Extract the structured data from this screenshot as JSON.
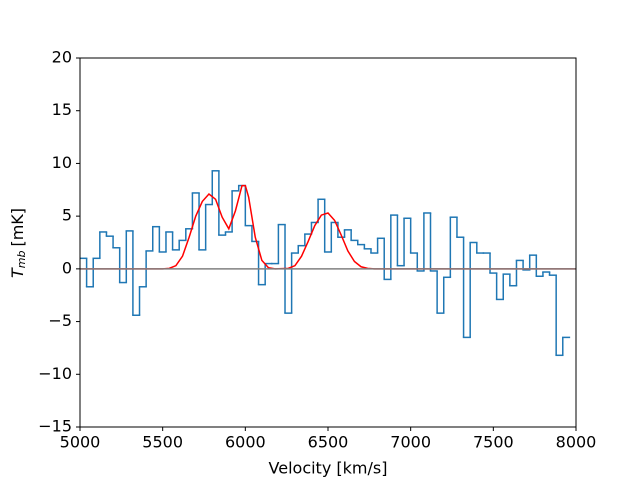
{
  "chart_data": {
    "type": "step",
    "xlabel": "Velocity [km/s]",
    "ylabel": {
      "symbol": "T",
      "subscript": "mb",
      "unit": "[mK]"
    },
    "xlim": [
      5000,
      8000
    ],
    "ylim": [
      -15,
      20
    ],
    "xticks": [
      5000,
      5500,
      6000,
      6500,
      7000,
      7500,
      8000
    ],
    "yticks": [
      {
        "value": -15,
        "label": "−15"
      },
      {
        "value": -10,
        "label": "−10"
      },
      {
        "value": -5,
        "label": "−5"
      },
      0,
      5,
      10,
      15,
      20
    ],
    "baseline": {
      "value": 0,
      "color": "gray"
    },
    "series": [
      {
        "kind": "step",
        "color": "#1f77b4",
        "bin_width": 40,
        "x": [
          5000,
          5040,
          5080,
          5120,
          5160,
          5200,
          5240,
          5280,
          5320,
          5360,
          5400,
          5440,
          5480,
          5520,
          5560,
          5600,
          5640,
          5680,
          5720,
          5760,
          5800,
          5840,
          5880,
          5920,
          5960,
          6000,
          6040,
          6080,
          6120,
          6160,
          6200,
          6240,
          6280,
          6320,
          6360,
          6400,
          6440,
          6480,
          6520,
          6560,
          6600,
          6640,
          6680,
          6720,
          6760,
          6800,
          6840,
          6880,
          6920,
          6960,
          7000,
          7040,
          7080,
          7120,
          7160,
          7200,
          7240,
          7280,
          7320,
          7360,
          7400,
          7440,
          7480,
          7520,
          7560,
          7600,
          7640,
          7680,
          7720,
          7760,
          7800,
          7840,
          7880,
          7920
        ],
        "values": [
          1.0,
          -1.7,
          1.0,
          3.5,
          3.1,
          2.0,
          -1.3,
          3.6,
          -4.4,
          -1.7,
          1.7,
          4.0,
          1.6,
          3.5,
          1.8,
          2.7,
          3.8,
          7.2,
          1.8,
          6.1,
          9.3,
          3.2,
          3.5,
          7.4,
          7.9,
          4.1,
          2.6,
          -1.5,
          0.5,
          0.5,
          4.2,
          -4.2,
          1.5,
          2.2,
          3.3,
          4.4,
          6.6,
          1.6,
          4.4,
          3.0,
          3.7,
          2.7,
          2.3,
          1.9,
          1.5,
          2.9,
          -1.0,
          5.1,
          0.3,
          4.8,
          1.5,
          -0.2,
          5.3,
          -0.2,
          -4.2,
          -0.8,
          4.9,
          3.0,
          -6.5,
          2.5,
          1.5,
          1.5,
          -0.4,
          -2.9,
          -0.5,
          -1.6,
          0.8,
          -0.1,
          1.3,
          -0.7,
          -0.3,
          -0.6,
          -8.2,
          -6.5
        ]
      },
      {
        "kind": "line",
        "color": "red",
        "x": [
          5000,
          5500,
          5540,
          5580,
          5620,
          5660,
          5700,
          5740,
          5780,
          5820,
          5860,
          5900,
          5940,
          5980,
          6000,
          6020,
          6060,
          6100,
          6140,
          6180,
          6260,
          6300,
          6340,
          6380,
          6420,
          6460,
          6500,
          6540,
          6580,
          6620,
          6660,
          6700,
          6740,
          6780,
          8000
        ],
        "values": [
          0,
          0,
          0.05,
          0.3,
          1.2,
          3.0,
          5.0,
          6.4,
          7.1,
          6.6,
          4.9,
          3.8,
          5.5,
          7.9,
          7.9,
          6.8,
          3.0,
          0.8,
          0.1,
          0,
          0.05,
          0.3,
          1.2,
          2.6,
          4.1,
          5.1,
          5.3,
          4.6,
          3.2,
          1.7,
          0.7,
          0.2,
          0.05,
          0,
          0
        ]
      }
    ]
  }
}
